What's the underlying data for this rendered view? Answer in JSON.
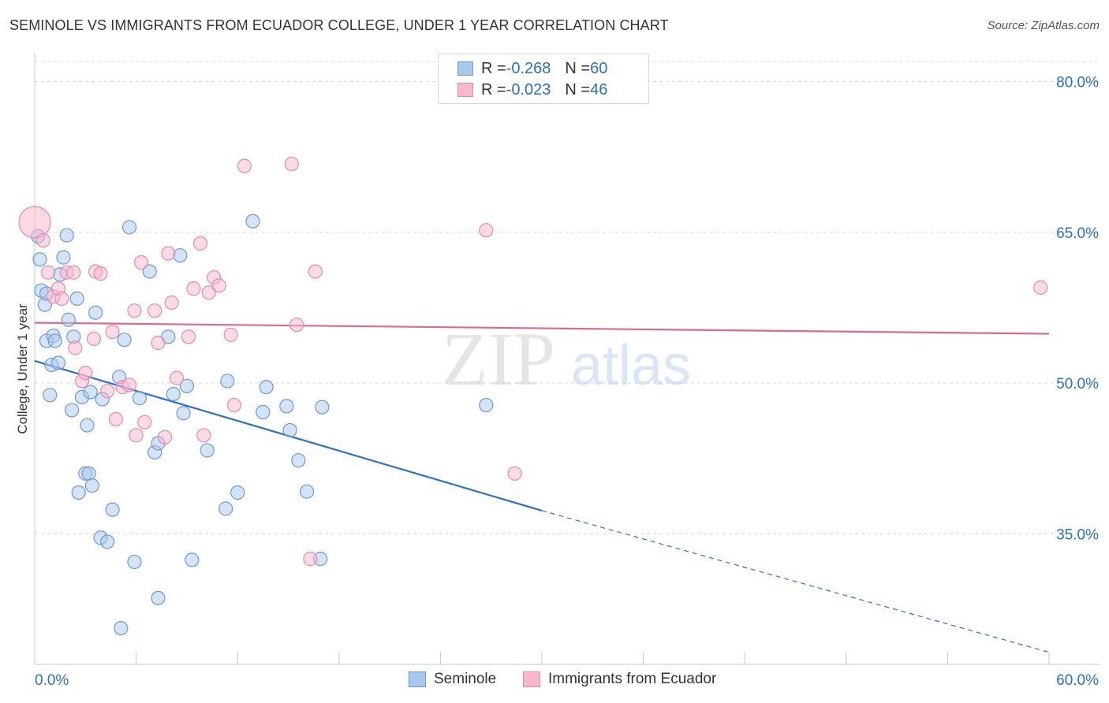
{
  "title": "SEMINOLE VS IMMIGRANTS FROM ECUADOR COLLEGE, UNDER 1 YEAR CORRELATION CHART",
  "source": "Source: ZipAtlas.com",
  "watermark": {
    "zip": "ZIP",
    "atlas": "atlas"
  },
  "legend": {
    "rows": [
      {
        "r_label": "R = ",
        "r_value": "-0.268",
        "n_label": "N = ",
        "n_value": "60"
      },
      {
        "r_label": "R = ",
        "r_value": "-0.023",
        "n_label": "N = ",
        "n_value": "46"
      }
    ]
  },
  "chart_data": {
    "type": "scatter",
    "title": "SEMINOLE VS IMMIGRANTS FROM ECUADOR COLLEGE, UNDER 1 YEAR CORRELATION CHART",
    "xlabel": "",
    "ylabel": "College, Under 1 year",
    "xlim": [
      0,
      60
    ],
    "ylim": [
      22,
      82
    ],
    "x_tick_labels": {
      "left": "0.0%",
      "right": "60.0%"
    },
    "y_ticks": [
      35,
      50,
      65,
      80
    ],
    "y_tick_labels": [
      "35.0%",
      "50.0%",
      "65.0%",
      "80.0%"
    ],
    "grid": true,
    "series": [
      {
        "name": "Seminole",
        "color": "#a9c8ee",
        "stroke": "#6a9bd8",
        "trend_color": "#2a6fd0",
        "trend": {
          "x0": 0,
          "y0": 52.2,
          "x1": 30,
          "y1": 37.3,
          "dash_to_x": 60,
          "dash_to_y": 23.2
        },
        "points": [
          [
            0.2,
            64.6
          ],
          [
            0.3,
            62.3
          ],
          [
            0.4,
            59.2
          ],
          [
            0.6,
            57.8
          ],
          [
            0.7,
            58.9
          ],
          [
            0.7,
            54.2
          ],
          [
            0.9,
            48.8
          ],
          [
            1.0,
            51.8
          ],
          [
            1.1,
            54.7
          ],
          [
            1.2,
            54.2
          ],
          [
            1.4,
            52.0
          ],
          [
            1.5,
            60.8
          ],
          [
            1.7,
            62.5
          ],
          [
            1.9,
            64.7
          ],
          [
            2.0,
            56.3
          ],
          [
            2.2,
            47.3
          ],
          [
            2.3,
            54.6
          ],
          [
            2.5,
            58.4
          ],
          [
            2.6,
            39.1
          ],
          [
            2.8,
            48.6
          ],
          [
            3.0,
            41.0
          ],
          [
            3.1,
            45.8
          ],
          [
            3.2,
            41.0
          ],
          [
            3.3,
            49.1
          ],
          [
            3.4,
            39.8
          ],
          [
            3.6,
            57.0
          ],
          [
            3.9,
            34.6
          ],
          [
            4.0,
            48.4
          ],
          [
            4.3,
            34.2
          ],
          [
            4.6,
            37.4
          ],
          [
            5.0,
            50.6
          ],
          [
            5.1,
            25.6
          ],
          [
            5.3,
            54.3
          ],
          [
            5.6,
            65.5
          ],
          [
            5.9,
            32.2
          ],
          [
            6.2,
            48.5
          ],
          [
            6.8,
            61.1
          ],
          [
            7.1,
            43.1
          ],
          [
            7.3,
            44.0
          ],
          [
            7.3,
            28.6
          ],
          [
            7.9,
            54.6
          ],
          [
            8.2,
            48.9
          ],
          [
            8.6,
            62.7
          ],
          [
            8.8,
            47.0
          ],
          [
            9.0,
            49.7
          ],
          [
            9.3,
            32.4
          ],
          [
            10.2,
            43.3
          ],
          [
            11.3,
            37.5
          ],
          [
            11.4,
            50.2
          ],
          [
            12.0,
            39.1
          ],
          [
            12.9,
            66.1
          ],
          [
            13.5,
            47.1
          ],
          [
            13.7,
            49.6
          ],
          [
            14.9,
            47.7
          ],
          [
            15.1,
            45.3
          ],
          [
            15.6,
            42.3
          ],
          [
            16.1,
            39.2
          ],
          [
            16.9,
            32.5
          ],
          [
            17.0,
            47.6
          ],
          [
            26.7,
            47.8
          ]
        ]
      },
      {
        "name": "Immigrants from Ecuador",
        "color": "#f7b8cb",
        "stroke": "#e88aa8",
        "trend_color": "#e06890",
        "trend": {
          "x0": 0,
          "y0": 56.0,
          "x1": 60,
          "y1": 54.9
        },
        "points": [
          [
            0.0,
            66.0
          ],
          [
            0.5,
            64.2
          ],
          [
            0.8,
            61.0
          ],
          [
            1.1,
            58.6
          ],
          [
            1.4,
            59.4
          ],
          [
            1.6,
            58.4
          ],
          [
            1.9,
            61.0
          ],
          [
            2.3,
            61.0
          ],
          [
            2.4,
            53.5
          ],
          [
            2.8,
            50.2
          ],
          [
            3.0,
            51.0
          ],
          [
            3.5,
            54.4
          ],
          [
            3.6,
            61.1
          ],
          [
            3.9,
            60.9
          ],
          [
            4.3,
            49.2
          ],
          [
            4.6,
            55.1
          ],
          [
            4.8,
            46.4
          ],
          [
            5.2,
            49.6
          ],
          [
            5.6,
            49.8
          ],
          [
            5.9,
            57.2
          ],
          [
            6.0,
            44.8
          ],
          [
            6.3,
            62.0
          ],
          [
            6.5,
            46.1
          ],
          [
            7.1,
            57.2
          ],
          [
            7.3,
            54.0
          ],
          [
            7.7,
            44.6
          ],
          [
            7.9,
            62.9
          ],
          [
            8.1,
            58.0
          ],
          [
            8.4,
            50.5
          ],
          [
            9.1,
            54.6
          ],
          [
            9.4,
            59.4
          ],
          [
            9.8,
            63.9
          ],
          [
            10.0,
            44.8
          ],
          [
            10.3,
            59.0
          ],
          [
            10.6,
            60.5
          ],
          [
            10.9,
            59.7
          ],
          [
            11.6,
            54.8
          ],
          [
            11.8,
            47.8
          ],
          [
            12.4,
            71.6
          ],
          [
            15.2,
            71.8
          ],
          [
            15.5,
            55.8
          ],
          [
            16.3,
            32.5
          ],
          [
            16.6,
            61.1
          ],
          [
            26.7,
            65.2
          ],
          [
            28.4,
            41.0
          ],
          [
            59.5,
            59.5
          ]
        ]
      }
    ]
  }
}
